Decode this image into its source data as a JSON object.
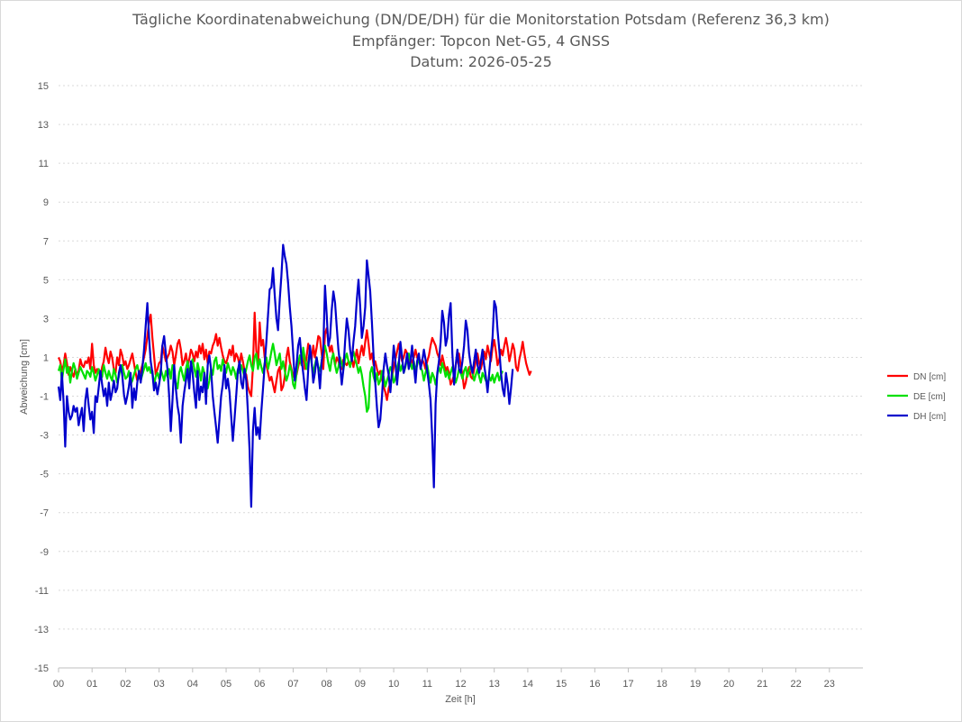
{
  "chart_data": {
    "type": "line",
    "title": "Tägliche Koordinatenabweichung (DN/DE/DH) für die Monitorstation Potsdam (Referenz 36,3 km)",
    "subtitle": "Empfänger: Topcon Net-G5, 4 GNSS",
    "date_line": "Datum: 2026-05-25",
    "xlabel": "Zeit [h]",
    "ylabel": "Abweichung [cm]",
    "x_ticks": [
      "00",
      "01",
      "02",
      "03",
      "04",
      "05",
      "06",
      "07",
      "08",
      "09",
      "10",
      "11",
      "12",
      "13",
      "14",
      "15",
      "16",
      "17",
      "18",
      "19",
      "20",
      "21",
      "22",
      "23"
    ],
    "y_ticks": [
      15,
      13,
      11,
      9,
      7,
      5,
      3,
      1,
      -1,
      -3,
      -5,
      -7,
      -9,
      -11,
      -13,
      -15
    ],
    "xlim": [
      0,
      24
    ],
    "ylim": [
      -15,
      15
    ],
    "grid": true,
    "legend_position": "right",
    "x_step_hours": 0.05,
    "series": [
      {
        "name": "DN [cm]",
        "color": "#ff0000",
        "values": [
          1.0,
          0.8,
          0.3,
          0.6,
          1.2,
          0.7,
          0.1,
          0.5,
          0.2,
          0.0,
          0.4,
          0.1,
          0.3,
          0.9,
          0.6,
          0.5,
          0.8,
          0.7,
          1.0,
          0.4,
          1.7,
          0.6,
          0.2,
          0.4,
          0.3,
          0.0,
          0.5,
          0.8,
          1.5,
          1.0,
          0.7,
          1.3,
          1.0,
          0.4,
          0.2,
          1.0,
          0.6,
          1.4,
          1.1,
          0.6,
          0.8,
          0.4,
          0.6,
          0.9,
          1.2,
          0.7,
          0.2,
          -0.2,
          0.0,
          0.3,
          0.6,
          1.0,
          1.4,
          2.1,
          2.8,
          3.2,
          2.0,
          1.1,
          0.1,
          0.4,
          0.7,
          0.8,
          1.6,
          1.2,
          0.8,
          1.0,
          1.2,
          1.6,
          1.3,
          0.6,
          1.1,
          1.7,
          1.9,
          1.4,
          0.6,
          0.8,
          1.2,
          0.6,
          0.9,
          1.4,
          1.2,
          0.8,
          1.3,
          1.0,
          1.6,
          1.2,
          1.7,
          0.9,
          1.4,
          0.7,
          1.3,
          1.2,
          1.6,
          1.8,
          2.2,
          1.6,
          2.0,
          1.5,
          1.1,
          0.8,
          0.7,
          1.0,
          1.4,
          1.1,
          1.6,
          0.8,
          1.2,
          1.0,
          0.6,
          1.2,
          0.8,
          0.3,
          0.1,
          -0.5,
          -0.8,
          -1.0,
          0.5,
          3.3,
          1.4,
          0.5,
          2.8,
          1.6,
          1.9,
          1.0,
          0.6,
          0.2,
          -0.2,
          0.0,
          -0.4,
          -0.8,
          -0.2,
          0.3,
          0.5,
          -0.7,
          -0.5,
          0.0,
          1.0,
          1.5,
          0.8,
          0.4,
          0.0,
          0.3,
          0.1,
          0.5,
          0.9,
          0.6,
          1.2,
          0.4,
          1.0,
          1.7,
          1.4,
          0.9,
          1.6,
          1.0,
          1.5,
          2.1,
          2.0,
          1.2,
          0.4,
          2.2,
          2.5,
          1.8,
          1.3,
          1.6,
          1.1,
          0.6,
          1.0,
          0.8,
          0.5,
          0.4,
          0.9,
          0.7,
          0.6,
          0.8,
          0.6,
          0.9,
          0.5,
          1.0,
          1.4,
          0.7,
          1.2,
          1.6,
          1.1,
          1.8,
          2.4,
          1.7,
          0.9,
          1.2,
          0.6,
          0.8,
          0.4,
          0.1,
          0.3,
          -0.1,
          -0.5,
          -0.8,
          -1.2,
          -0.6,
          -0.3,
          0.0,
          0.5,
          0.9,
          1.3,
          1.7,
          1.2,
          0.8,
          1.0,
          1.4,
          1.2,
          0.9,
          0.6,
          0.8,
          1.0,
          1.4,
          1.0,
          0.8,
          0.6,
          0.9,
          0.7,
          0.4,
          0.8,
          1.1,
          1.6,
          2.0,
          1.8,
          1.6,
          1.2,
          1.0,
          0.6,
          1.1,
          0.7,
          0.3,
          0.5,
          0.2,
          -0.4,
          -0.2,
          0.1,
          0.6,
          0.9,
          1.2,
          0.6,
          0.1,
          -0.6,
          -0.3,
          0.2,
          0.5,
          0.0,
          -0.1,
          0.4,
          0.8,
          1.2,
          0.7,
          0.4,
          0.8,
          1.3,
          0.9,
          1.6,
          1.2,
          0.8,
          1.5,
          1.9,
          1.3,
          0.6,
          0.9,
          1.4,
          1.1,
          1.6,
          2.0,
          1.5,
          0.8,
          1.2,
          1.7,
          1.4,
          0.5,
          0.3,
          0.9,
          1.3,
          1.8,
          1.2,
          0.7,
          0.4,
          0.1,
          0.3
        ]
      },
      {
        "name": "DE [cm]",
        "color": "#00e000",
        "values": [
          0.3,
          0.6,
          -0.2,
          0.4,
          0.9,
          0.2,
          0.5,
          -0.3,
          0.3,
          0.7,
          0.4,
          -0.1,
          0.2,
          0.5,
          0.3,
          0.1,
          -0.1,
          0.3,
          0.2,
          0.0,
          0.5,
          0.2,
          -0.2,
          0.1,
          0.4,
          -0.1,
          0.0,
          0.6,
          0.2,
          -0.1,
          0.3,
          0.0,
          -0.2,
          0.4,
          0.1,
          -0.3,
          0.0,
          0.5,
          0.6,
          0.2,
          -0.1,
          0.0,
          0.3,
          -0.4,
          -0.2,
          0.1,
          0.4,
          0.6,
          0.2,
          -0.2,
          0.1,
          0.4,
          0.7,
          0.3,
          0.5,
          0.2,
          0.3,
          -0.4,
          0.0,
          0.2,
          -0.1,
          0.4,
          0.1,
          -0.2,
          0.3,
          0.0,
          0.4,
          -0.1,
          0.6,
          0.3,
          -0.3,
          -0.6,
          0.2,
          0.5,
          0.1,
          -0.2,
          0.4,
          0.8,
          0.1,
          0.6,
          0.9,
          0.4,
          0.0,
          0.7,
          0.3,
          -0.2,
          0.5,
          0.2,
          -0.3,
          -0.6,
          -0.2,
          0.4,
          0.1,
          0.8,
          1.0,
          0.4,
          0.6,
          0.3,
          0.9,
          0.5,
          0.2,
          0.7,
          0.4,
          0.1,
          0.5,
          0.3,
          -0.1,
          0.4,
          0.2,
          0.6,
          0.3,
          0.0,
          0.4,
          0.8,
          1.1,
          0.6,
          0.3,
          1.0,
          1.2,
          0.4,
          0.9,
          0.5,
          0.2,
          0.7,
          1.0,
          0.4,
          0.8,
          1.3,
          1.7,
          1.2,
          0.6,
          0.9,
          1.2,
          0.4,
          0.8,
          0.3,
          -0.2,
          0.1,
          0.6,
          0.3,
          -0.4,
          -0.6,
          0.2,
          0.7,
          1.1,
          0.6,
          1.5,
          0.9,
          0.4,
          0.8,
          1.3,
          0.7,
          0.2,
          0.6,
          1.0,
          0.5,
          0.3,
          0.8,
          1.4,
          1.6,
          1.2,
          0.7,
          0.3,
          0.9,
          1.2,
          0.6,
          0.2,
          0.5,
          1.0,
          0.7,
          0.4,
          0.9,
          1.2,
          0.8,
          0.5,
          1.0,
          1.3,
          0.9,
          0.6,
          0.2,
          0.5,
          0.1,
          -0.5,
          -1.0,
          -1.8,
          -1.6,
          0.2,
          0.5,
          0.0,
          -0.3,
          0.2,
          -0.4,
          -0.2,
          0.3,
          0.0,
          -0.5,
          -0.2,
          0.1,
          0.5,
          0.3,
          -0.3,
          -0.1,
          0.4,
          0.8,
          0.3,
          0.6,
          0.2,
          0.5,
          0.9,
          1.2,
          0.7,
          0.4,
          0.8,
          0.3,
          0.6,
          1.0,
          0.5,
          0.3,
          -0.2,
          0.2,
          0.6,
          0.1,
          -0.3,
          0.2,
          0.0,
          -0.4,
          0.1,
          0.5,
          0.2,
          0.7,
          0.4,
          0.0,
          0.3,
          -0.1,
          0.2,
          0.5,
          0.1,
          -0.3,
          0.0,
          0.4,
          0.2,
          -0.1,
          0.3,
          0.5,
          0.0,
          0.3,
          0.6,
          0.2,
          -0.2,
          0.1,
          0.4,
          0.0,
          -0.3,
          0.2,
          0.0,
          -0.2,
          -0.4,
          0.0,
          -0.2,
          0.1,
          -0.3,
          0.0,
          0.2,
          -0.2,
          0.1,
          0.3
        ]
      },
      {
        "name": "DH [cm]",
        "color": "#0000cc",
        "values": [
          -0.5,
          -1.2,
          0.2,
          -1.3,
          -3.6,
          -1.0,
          -1.8,
          -2.2,
          -2.0,
          -1.5,
          -1.8,
          -1.6,
          -2.5,
          -2.0,
          -1.6,
          -2.8,
          -1.2,
          -0.6,
          -1.5,
          -2.2,
          -1.8,
          -2.9,
          -1.0,
          -1.3,
          -0.5,
          0.3,
          -0.4,
          -1.0,
          -0.6,
          -1.5,
          -0.3,
          -1.2,
          -0.8,
          -0.2,
          -0.8,
          -0.6,
          0.2,
          0.6,
          0.1,
          -0.9,
          -1.4,
          -1.0,
          -0.5,
          0.2,
          -1.6,
          -0.6,
          -1.2,
          -0.3,
          0.3,
          -0.3,
          0.4,
          1.4,
          2.6,
          3.8,
          2.0,
          0.8,
          0.2,
          -0.7,
          -0.3,
          -0.9,
          -0.4,
          0.2,
          1.6,
          2.1,
          1.2,
          0.4,
          -1.0,
          -2.8,
          -1.2,
          0.6,
          -0.6,
          -1.5,
          -2.0,
          -3.4,
          -1.5,
          -0.8,
          -0.2,
          0.4,
          -0.6,
          0.8,
          0.2,
          -0.8,
          -1.6,
          0.3,
          -1.2,
          -0.5,
          -0.8,
          0.2,
          -1.4,
          0.6,
          1.1,
          0.4,
          -1.0,
          -1.8,
          -2.6,
          -3.4,
          -2.2,
          -1.0,
          -0.4,
          0.6,
          -0.6,
          -0.1,
          -0.8,
          -2.0,
          -3.3,
          -2.2,
          -1.0,
          0.3,
          0.8,
          -0.3,
          -0.6,
          0.4,
          -0.2,
          -1.8,
          -3.8,
          -6.7,
          -2.8,
          -1.6,
          -3.0,
          -2.6,
          -3.2,
          -1.8,
          -0.6,
          0.6,
          1.8,
          3.2,
          4.5,
          4.6,
          5.6,
          4.2,
          3.0,
          2.4,
          4.0,
          5.2,
          6.8,
          6.2,
          5.8,
          4.8,
          3.6,
          2.6,
          1.2,
          -0.2,
          0.6,
          1.6,
          2.0,
          0.9,
          0.2,
          -0.6,
          -1.2,
          0.4,
          1.6,
          0.8,
          -0.3,
          0.2,
          1.0,
          0.4,
          -0.6,
          0.8,
          1.4,
          4.7,
          3.2,
          1.6,
          2.0,
          3.4,
          4.4,
          3.8,
          2.6,
          1.4,
          0.6,
          -0.4,
          0.4,
          1.8,
          3.0,
          2.4,
          1.4,
          0.8,
          1.8,
          2.6,
          4.0,
          5.0,
          3.6,
          2.0,
          2.6,
          3.6,
          6.0,
          5.2,
          4.4,
          2.8,
          1.0,
          -0.3,
          -1.6,
          -2.6,
          -2.2,
          -1.0,
          0.4,
          1.2,
          0.6,
          0.1,
          -0.8,
          0.3,
          1.6,
          0.8,
          -0.4,
          0.6,
          1.8,
          1.0,
          0.2,
          0.6,
          1.2,
          0.4,
          0.8,
          1.6,
          0.6,
          -0.3,
          0.8,
          1.2,
          0.4,
          0.8,
          1.4,
          0.9,
          0.3,
          -0.4,
          -1.2,
          -3.2,
          -5.7,
          -1.4,
          0.2,
          0.8,
          1.8,
          3.4,
          2.8,
          1.6,
          2.0,
          3.2,
          3.8,
          1.2,
          -0.4,
          0.6,
          1.4,
          0.4,
          0.2,
          0.8,
          1.6,
          2.9,
          2.4,
          1.2,
          0.6,
          0.2,
          0.8,
          1.4,
          0.6,
          0.2,
          0.8,
          1.4,
          0.6,
          0.0,
          -0.8,
          0.2,
          1.2,
          2.0,
          3.9,
          3.6,
          2.4,
          1.4,
          0.2,
          -0.6,
          -1.0,
          0.2,
          -0.4,
          -1.4,
          -0.6,
          0.4
        ]
      }
    ]
  }
}
